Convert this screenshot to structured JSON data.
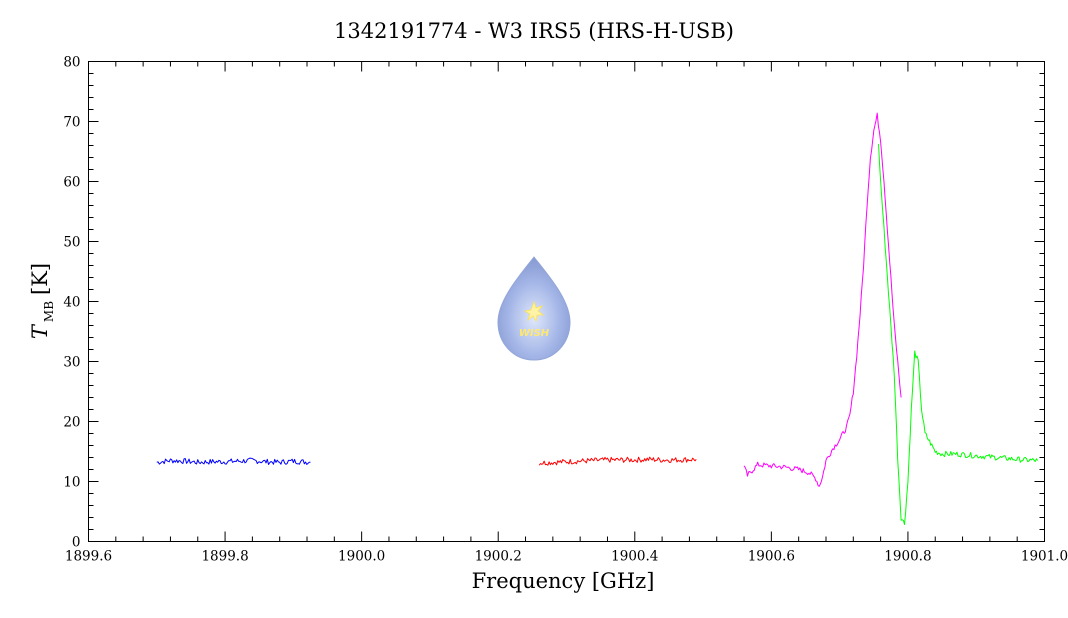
{
  "chart_data": {
    "type": "line",
    "title": "1342191774 - W3 IRS5 (HRS-H-USB)",
    "xlabel": "Frequency [GHz]",
    "ylabel_main": "T",
    "ylabel_sub": "MB",
    "ylabel_unit": "[K]",
    "xlim": [
      1899.6,
      1901.0
    ],
    "ylim": [
      0,
      80
    ],
    "xticks": [
      1899.6,
      1899.8,
      1900.0,
      1900.2,
      1900.4,
      1900.6,
      1900.8,
      1901.0
    ],
    "xtick_labels": [
      "1899.6",
      "1899.8",
      "1900.0",
      "1900.2",
      "1900.4",
      "1900.6",
      "1900.8",
      "1901.0"
    ],
    "yticks": [
      0,
      10,
      20,
      30,
      40,
      50,
      60,
      70,
      80
    ],
    "ytick_labels": [
      "0",
      "10",
      "20",
      "30",
      "40",
      "50",
      "60",
      "70",
      "80"
    ],
    "grid": false,
    "logo_text": "WISH",
    "series": [
      {
        "color": "#0000ff",
        "x": [
          1899.7,
          1899.72,
          1899.74,
          1899.76,
          1899.78,
          1899.8,
          1899.82,
          1899.84,
          1899.86,
          1899.88,
          1899.9,
          1899.925
        ],
        "y": [
          13.2,
          13.5,
          13.4,
          13.2,
          13.3,
          13.3,
          13.4,
          13.5,
          13.3,
          13.2,
          13.4,
          13.2
        ]
      },
      {
        "color": "#ff0000",
        "x": [
          1900.26,
          1900.28,
          1900.3,
          1900.32,
          1900.34,
          1900.36,
          1900.38,
          1900.4,
          1900.42,
          1900.44,
          1900.46,
          1900.49
        ],
        "y": [
          13.1,
          13.2,
          13.3,
          13.4,
          13.5,
          13.6,
          13.6,
          13.6,
          13.7,
          13.6,
          13.6,
          13.7
        ]
      },
      {
        "color": "#ff00ff",
        "x": [
          1900.56,
          1900.565,
          1900.58,
          1900.6,
          1900.62,
          1900.64,
          1900.655,
          1900.66,
          1900.665,
          1900.67,
          1900.675,
          1900.68,
          1900.69,
          1900.7,
          1900.71,
          1900.715,
          1900.72,
          1900.725,
          1900.73,
          1900.735,
          1900.74,
          1900.745,
          1900.75,
          1900.755,
          1900.76,
          1900.765,
          1900.77,
          1900.775,
          1900.78,
          1900.785,
          1900.79
        ],
        "y": [
          12.5,
          11.0,
          12.8,
          12.6,
          12.4,
          12.0,
          11.5,
          11.0,
          10.5,
          9.2,
          10.8,
          13.5,
          15.5,
          17.0,
          19.0,
          21.0,
          25.0,
          31.0,
          38.0,
          46.0,
          56.0,
          64.0,
          68.5,
          71.0,
          67.0,
          60.0,
          52.0,
          44.0,
          36.0,
          30.0,
          24.0
        ]
      },
      {
        "color": "#00ff00",
        "x": [
          1900.757,
          1900.76,
          1900.765,
          1900.77,
          1900.775,
          1900.78,
          1900.785,
          1900.79,
          1900.795,
          1900.8,
          1900.805,
          1900.81,
          1900.815,
          1900.82,
          1900.825,
          1900.83,
          1900.84,
          1900.85,
          1900.87,
          1900.89,
          1900.91,
          1900.93,
          1900.95,
          1900.97,
          1900.99
        ],
        "y": [
          66.0,
          60.0,
          52.0,
          44.0,
          36.0,
          28.0,
          14.0,
          4.0,
          3.0,
          10.0,
          22.0,
          31.5,
          30.0,
          22.0,
          18.0,
          17.0,
          15.0,
          14.6,
          14.6,
          14.4,
          14.2,
          14.0,
          13.8,
          13.6,
          13.5
        ]
      }
    ]
  }
}
